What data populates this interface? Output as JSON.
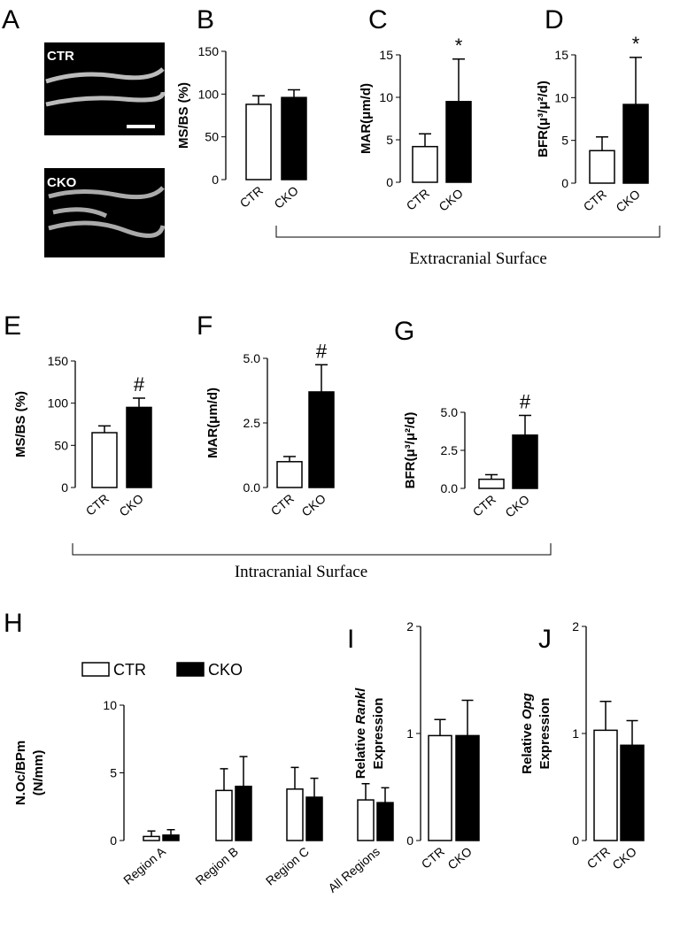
{
  "panel_a": {
    "panel": "A",
    "labels": [
      "CTR",
      "CKO"
    ]
  },
  "groups": [
    {
      "label": "Extracranial  Surface"
    },
    {
      "label": "Intracranial  Surface"
    }
  ],
  "chart_data": [
    {
      "panel": "B",
      "type": "bar",
      "ylabel": "MS/BS (%)",
      "categories": [
        "CTR",
        "CKO"
      ],
      "values": [
        88,
        96
      ],
      "errors": [
        10,
        9
      ],
      "colors": [
        "#ffffff",
        "#000000"
      ],
      "ylim": [
        0,
        150
      ],
      "yticks": [
        0,
        50,
        100,
        150
      ]
    },
    {
      "panel": "C",
      "type": "bar",
      "ylabel": "MAR(μm/d)",
      "categories": [
        "CTR",
        "CKO"
      ],
      "values": [
        4.2,
        9.5
      ],
      "errors": [
        1.5,
        5
      ],
      "value_annotations": [
        null,
        "*"
      ],
      "colors": [
        "#ffffff",
        "#000000"
      ],
      "ylim": [
        0,
        15
      ],
      "yticks": [
        0,
        5,
        10,
        15
      ]
    },
    {
      "panel": "D",
      "type": "bar",
      "ylabel": "BFR(μ³/μ²/d)",
      "categories": [
        "CTR",
        "CKO"
      ],
      "values": [
        3.8,
        9.2
      ],
      "errors": [
        1.6,
        5.5
      ],
      "value_annotations": [
        null,
        "*"
      ],
      "colors": [
        "#ffffff",
        "#000000"
      ],
      "ylim": [
        0,
        15
      ],
      "yticks": [
        0,
        5,
        10,
        15
      ]
    },
    {
      "panel": "E",
      "type": "bar",
      "ylabel": "MS/BS (%)",
      "categories": [
        "CTR",
        "CKO"
      ],
      "values": [
        65,
        95
      ],
      "errors": [
        8,
        11
      ],
      "value_annotations": [
        null,
        "#"
      ],
      "colors": [
        "#ffffff",
        "#000000"
      ],
      "ylim": [
        0,
        150
      ],
      "yticks": [
        0,
        50,
        100,
        150
      ]
    },
    {
      "panel": "F",
      "type": "bar",
      "ylabel": "MAR(μm/d)",
      "categories": [
        "CTR",
        "CKO"
      ],
      "values": [
        1.0,
        3.7
      ],
      "errors": [
        0.2,
        1.05
      ],
      "value_annotations": [
        null,
        "#"
      ],
      "colors": [
        "#ffffff",
        "#000000"
      ],
      "ylim": [
        0,
        5
      ],
      "yticks": [
        {
          "value": 0,
          "label": "0.0"
        },
        {
          "value": 2.5,
          "label": "2.5"
        },
        {
          "value": 5,
          "label": "5.0"
        }
      ]
    },
    {
      "panel": "G",
      "type": "bar",
      "ylabel": "BFR(μ³/μ²/d)",
      "categories": [
        "CTR",
        "CKO"
      ],
      "values": [
        0.6,
        3.5
      ],
      "errors": [
        0.3,
        1.3
      ],
      "value_annotations": [
        null,
        "#"
      ],
      "colors": [
        "#ffffff",
        "#000000"
      ],
      "ylim": [
        0,
        5
      ],
      "yticks": [
        {
          "value": 0,
          "label": "0.0"
        },
        {
          "value": 2.5,
          "label": "2.5"
        },
        {
          "value": 5,
          "label": "5.0"
        }
      ]
    },
    {
      "panel": "H",
      "type": "grouped-bar",
      "ylabel": [
        "N.Oc/BPm",
        "(N/mm)"
      ],
      "categories": [
        "Region A",
        "Region B",
        "Region C",
        "All Regions"
      ],
      "legend": "top",
      "series": [
        {
          "name": "CTR",
          "color": "#ffffff",
          "values": [
            0.3,
            3.7,
            3.8,
            3.0
          ],
          "errors": [
            0.4,
            1.6,
            1.6,
            1.2
          ]
        },
        {
          "name": "CKO",
          "color": "#000000",
          "values": [
            0.4,
            4.0,
            3.2,
            2.8
          ],
          "errors": [
            0.4,
            2.2,
            1.4,
            1.1
          ]
        }
      ],
      "ylim": [
        0,
        10
      ],
      "yticks": [
        0,
        5,
        10
      ]
    },
    {
      "panel": "I",
      "type": "bar",
      "ylabel": [
        "Relative ",
        "Rankl",
        "Expression"
      ],
      "categories": [
        "CTR",
        "CKO"
      ],
      "values": [
        0.98,
        0.98
      ],
      "errors": [
        0.15,
        0.33
      ],
      "colors": [
        "#ffffff",
        "#000000"
      ],
      "ylim": [
        0,
        2
      ],
      "yticks": [
        0,
        1,
        2
      ]
    },
    {
      "panel": "J",
      "type": "bar",
      "ylabel": [
        "Relative ",
        "Opg",
        "Expression"
      ],
      "categories": [
        "CTR",
        "CKO"
      ],
      "values": [
        1.03,
        0.89
      ],
      "errors": [
        0.27,
        0.23
      ],
      "colors": [
        "#ffffff",
        "#000000"
      ],
      "ylim": [
        0,
        2
      ],
      "yticks": [
        0,
        1,
        2
      ]
    }
  ]
}
